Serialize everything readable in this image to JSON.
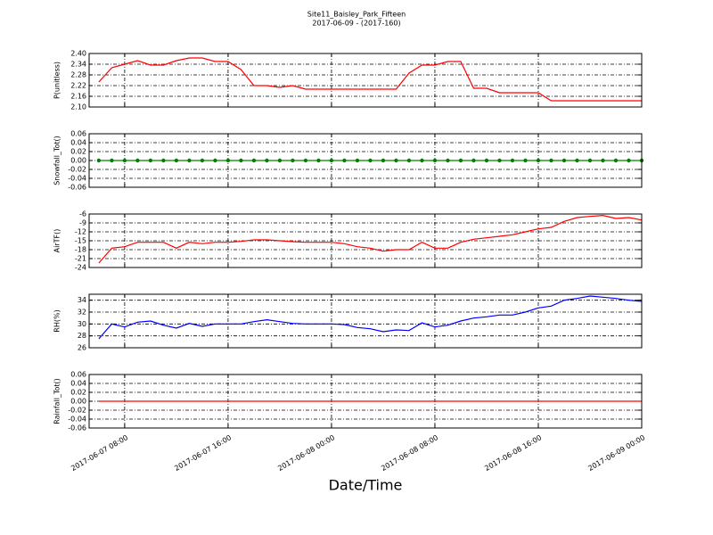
{
  "title": "Site11_Baisley_Park_Fifteen",
  "subtitle": "2017-06-09 - (2017-160)",
  "xlabel": "Date/Time",
  "chart_data": [
    {
      "type": "line",
      "ylabel": "P(unitless)",
      "color": "#ff0000",
      "grid": true,
      "ylim": [
        2.1,
        2.4
      ],
      "yticks": [
        {
          "value": 2.1,
          "label": "2.10"
        },
        2.16,
        2.22,
        2.28,
        2.34,
        {
          "value": 2.4,
          "label": "2.40"
        }
      ],
      "xlim": [
        "2017-06-07 05:15",
        "2017-06-09 00:00"
      ],
      "x": [
        "2017-06-07 06:00",
        "2017-06-07 07:00",
        "2017-06-07 08:00",
        "2017-06-07 09:00",
        "2017-06-07 10:00",
        "2017-06-07 11:00",
        "2017-06-07 12:00",
        "2017-06-07 13:00",
        "2017-06-07 14:00",
        "2017-06-07 15:00",
        "2017-06-07 16:00",
        "2017-06-07 17:00",
        "2017-06-07 18:00",
        "2017-06-07 19:00",
        "2017-06-07 20:00",
        "2017-06-07 21:00",
        "2017-06-07 22:00",
        "2017-06-07 23:00",
        "2017-06-08 00:00",
        "2017-06-08 01:00",
        "2017-06-08 02:00",
        "2017-06-08 03:00",
        "2017-06-08 04:00",
        "2017-06-08 05:00",
        "2017-06-08 06:00",
        "2017-06-08 07:00",
        "2017-06-08 08:00",
        "2017-06-08 09:00",
        "2017-06-08 10:00",
        "2017-06-08 11:00",
        "2017-06-08 12:00",
        "2017-06-08 13:00",
        "2017-06-08 14:00",
        "2017-06-08 15:00",
        "2017-06-08 16:00",
        "2017-06-08 17:00",
        "2017-06-08 18:00",
        "2017-06-08 19:00",
        "2017-06-08 20:00",
        "2017-06-08 21:00",
        "2017-06-08 22:00",
        "2017-06-08 23:00",
        "2017-06-09 00:00"
      ],
      "values": [
        2.24,
        2.32,
        2.34,
        2.36,
        2.335,
        2.335,
        2.36,
        2.375,
        2.375,
        2.355,
        2.355,
        2.31,
        2.22,
        2.22,
        2.21,
        2.22,
        2.2,
        2.2,
        2.2,
        2.2,
        2.2,
        2.2,
        2.2,
        2.2,
        2.29,
        2.335,
        2.335,
        2.355,
        2.355,
        2.205,
        2.205,
        2.18,
        2.18,
        2.18,
        2.18,
        2.135,
        2.135,
        2.135,
        2.135,
        2.135,
        2.135,
        2.135,
        2.135
      ]
    },
    {
      "type": "line",
      "marker": "o",
      "ylabel": "Snowfall_Tot()",
      "color": "#008000",
      "grid": true,
      "ylim": [
        -0.06,
        0.06
      ],
      "yticks": [
        -0.06,
        -0.04,
        -0.02,
        {
          "value": 0,
          "label": "0.00"
        },
        0.02,
        0.04,
        0.06
      ],
      "xlim": [
        "2017-06-07 05:15",
        "2017-06-09 00:00"
      ],
      "x": [
        "2017-06-07 06:00",
        "2017-06-07 07:00",
        "2017-06-07 08:00",
        "2017-06-07 09:00",
        "2017-06-07 10:00",
        "2017-06-07 11:00",
        "2017-06-07 12:00",
        "2017-06-07 13:00",
        "2017-06-07 14:00",
        "2017-06-07 15:00",
        "2017-06-07 16:00",
        "2017-06-07 17:00",
        "2017-06-07 18:00",
        "2017-06-07 19:00",
        "2017-06-07 20:00",
        "2017-06-07 21:00",
        "2017-06-07 22:00",
        "2017-06-07 23:00",
        "2017-06-08 00:00",
        "2017-06-08 01:00",
        "2017-06-08 02:00",
        "2017-06-08 03:00",
        "2017-06-08 04:00",
        "2017-06-08 05:00",
        "2017-06-08 06:00",
        "2017-06-08 07:00",
        "2017-06-08 08:00",
        "2017-06-08 09:00",
        "2017-06-08 10:00",
        "2017-06-08 11:00",
        "2017-06-08 12:00",
        "2017-06-08 13:00",
        "2017-06-08 14:00",
        "2017-06-08 15:00",
        "2017-06-08 16:00",
        "2017-06-08 17:00",
        "2017-06-08 18:00",
        "2017-06-08 19:00",
        "2017-06-08 20:00",
        "2017-06-08 21:00",
        "2017-06-08 22:00",
        "2017-06-08 23:00",
        "2017-06-09 00:00"
      ],
      "values": [
        0,
        0,
        0,
        0,
        0,
        0,
        0,
        0,
        0,
        0,
        0,
        0,
        0,
        0,
        0,
        0,
        0,
        0,
        0,
        0,
        0,
        0,
        0,
        0,
        0,
        0,
        0,
        0,
        0,
        0,
        0,
        0,
        0,
        0,
        0,
        0,
        0,
        0,
        0,
        0,
        0,
        0,
        0
      ]
    },
    {
      "type": "line",
      "ylabel": "AirTF()",
      "color": "#ff0000",
      "grid": true,
      "ylim": [
        -24,
        -6
      ],
      "yticks": [
        -24,
        -21,
        -18,
        -15,
        -12,
        -9,
        -6
      ],
      "xlim": [
        "2017-06-07 05:15",
        "2017-06-09 00:00"
      ],
      "x": [
        "2017-06-07 06:00",
        "2017-06-07 07:00",
        "2017-06-07 08:00",
        "2017-06-07 09:00",
        "2017-06-07 10:00",
        "2017-06-07 11:00",
        "2017-06-07 12:00",
        "2017-06-07 13:00",
        "2017-06-07 14:00",
        "2017-06-07 15:00",
        "2017-06-07 16:00",
        "2017-06-07 17:00",
        "2017-06-07 18:00",
        "2017-06-07 19:00",
        "2017-06-07 20:00",
        "2017-06-07 21:00",
        "2017-06-07 22:00",
        "2017-06-07 23:00",
        "2017-06-08 00:00",
        "2017-06-08 01:00",
        "2017-06-08 02:00",
        "2017-06-08 03:00",
        "2017-06-08 04:00",
        "2017-06-08 05:00",
        "2017-06-08 06:00",
        "2017-06-08 07:00",
        "2017-06-08 08:00",
        "2017-06-08 09:00",
        "2017-06-08 10:00",
        "2017-06-08 11:00",
        "2017-06-08 12:00",
        "2017-06-08 13:00",
        "2017-06-08 14:00",
        "2017-06-08 15:00",
        "2017-06-08 16:00",
        "2017-06-08 17:00",
        "2017-06-08 18:00",
        "2017-06-08 19:00",
        "2017-06-08 20:00",
        "2017-06-08 21:00",
        "2017-06-08 22:00",
        "2017-06-08 23:00",
        "2017-06-09 00:00"
      ],
      "values": [
        -22.5,
        -17.5,
        -17,
        -15.5,
        -15.5,
        -15.5,
        -17.5,
        -15.5,
        -16,
        -15.5,
        -15.5,
        -15.2,
        -14.7,
        -14.7,
        -15,
        -15.3,
        -15.5,
        -15.5,
        -15.5,
        -16,
        -17,
        -17.5,
        -18.5,
        -18,
        -18,
        -15.5,
        -17.5,
        -17.5,
        -15.5,
        -14.5,
        -14,
        -13.5,
        -13,
        -12,
        -11,
        -10.5,
        -8.5,
        -7.2,
        -6.8,
        -6.5,
        -7.5,
        -7.2,
        -8
      ]
    },
    {
      "type": "line",
      "ylabel": "RH(%)",
      "color": "#0000ff",
      "grid": true,
      "ylim": [
        26,
        35
      ],
      "yticks": [
        26,
        28,
        30,
        32,
        34
      ],
      "xlim": [
        "2017-06-07 05:15",
        "2017-06-09 00:00"
      ],
      "x": [
        "2017-06-07 06:00",
        "2017-06-07 07:00",
        "2017-06-07 08:00",
        "2017-06-07 09:00",
        "2017-06-07 10:00",
        "2017-06-07 11:00",
        "2017-06-07 12:00",
        "2017-06-07 13:00",
        "2017-06-07 14:00",
        "2017-06-07 15:00",
        "2017-06-07 16:00",
        "2017-06-07 17:00",
        "2017-06-07 18:00",
        "2017-06-07 19:00",
        "2017-06-07 20:00",
        "2017-06-07 21:00",
        "2017-06-07 22:00",
        "2017-06-07 23:00",
        "2017-06-08 00:00",
        "2017-06-08 01:00",
        "2017-06-08 02:00",
        "2017-06-08 03:00",
        "2017-06-08 04:00",
        "2017-06-08 05:00",
        "2017-06-08 06:00",
        "2017-06-08 07:00",
        "2017-06-08 08:00",
        "2017-06-08 09:00",
        "2017-06-08 10:00",
        "2017-06-08 11:00",
        "2017-06-08 12:00",
        "2017-06-08 13:00",
        "2017-06-08 14:00",
        "2017-06-08 15:00",
        "2017-06-08 16:00",
        "2017-06-08 17:00",
        "2017-06-08 18:00",
        "2017-06-08 19:00",
        "2017-06-08 20:00",
        "2017-06-08 21:00",
        "2017-06-08 22:00",
        "2017-06-08 23:00",
        "2017-06-09 00:00"
      ],
      "values": [
        27.5,
        30,
        29.5,
        30.3,
        30.5,
        29.8,
        29.3,
        30.1,
        29.6,
        30,
        30,
        30,
        30.4,
        30.7,
        30.4,
        30.1,
        30,
        30,
        30,
        29.9,
        29.4,
        29.2,
        28.7,
        29,
        28.9,
        30.2,
        29.5,
        29.8,
        30.5,
        31,
        31.2,
        31.5,
        31.5,
        32,
        32.7,
        33,
        34,
        34.3,
        34.7,
        34.5,
        34.3,
        34,
        33.8
      ]
    },
    {
      "type": "line",
      "ylabel": "Rainfall_Tot()",
      "color": "#ff0000",
      "grid": true,
      "ylim": [
        -0.06,
        0.06
      ],
      "yticks": [
        -0.06,
        -0.04,
        -0.02,
        {
          "value": 0,
          "label": "0.00"
        },
        0.02,
        0.04,
        0.06
      ],
      "xlim": [
        "2017-06-07 05:15",
        "2017-06-09 00:00"
      ],
      "xticks": [
        "2017-06-07 08:00",
        "2017-06-07 16:00",
        "2017-06-08 00:00",
        "2017-06-08 08:00",
        "2017-06-08 16:00",
        "2017-06-09 00:00"
      ],
      "x": [
        "2017-06-07 06:00",
        "2017-06-07 07:00",
        "2017-06-07 08:00",
        "2017-06-07 09:00",
        "2017-06-07 10:00",
        "2017-06-07 11:00",
        "2017-06-07 12:00",
        "2017-06-07 13:00",
        "2017-06-07 14:00",
        "2017-06-07 15:00",
        "2017-06-07 16:00",
        "2017-06-07 17:00",
        "2017-06-07 18:00",
        "2017-06-07 19:00",
        "2017-06-07 20:00",
        "2017-06-07 21:00",
        "2017-06-07 22:00",
        "2017-06-07 23:00",
        "2017-06-08 00:00",
        "2017-06-08 01:00",
        "2017-06-08 02:00",
        "2017-06-08 03:00",
        "2017-06-08 04:00",
        "2017-06-08 05:00",
        "2017-06-08 06:00",
        "2017-06-08 07:00",
        "2017-06-08 08:00",
        "2017-06-08 09:00",
        "2017-06-08 10:00",
        "2017-06-08 11:00",
        "2017-06-08 12:00",
        "2017-06-08 13:00",
        "2017-06-08 14:00",
        "2017-06-08 15:00",
        "2017-06-08 16:00",
        "2017-06-08 17:00",
        "2017-06-08 18:00",
        "2017-06-08 19:00",
        "2017-06-08 20:00",
        "2017-06-08 21:00",
        "2017-06-08 22:00",
        "2017-06-08 23:00",
        "2017-06-09 00:00"
      ],
      "values": [
        0,
        0,
        0,
        0,
        0,
        0,
        0,
        0,
        0,
        0,
        0,
        0,
        0,
        0,
        0,
        0,
        0,
        0,
        0,
        0,
        0,
        0,
        0,
        0,
        0,
        0,
        0,
        0,
        0,
        0,
        0,
        0,
        0,
        0,
        0,
        0,
        0,
        0,
        0,
        0,
        0,
        0,
        0
      ]
    }
  ]
}
